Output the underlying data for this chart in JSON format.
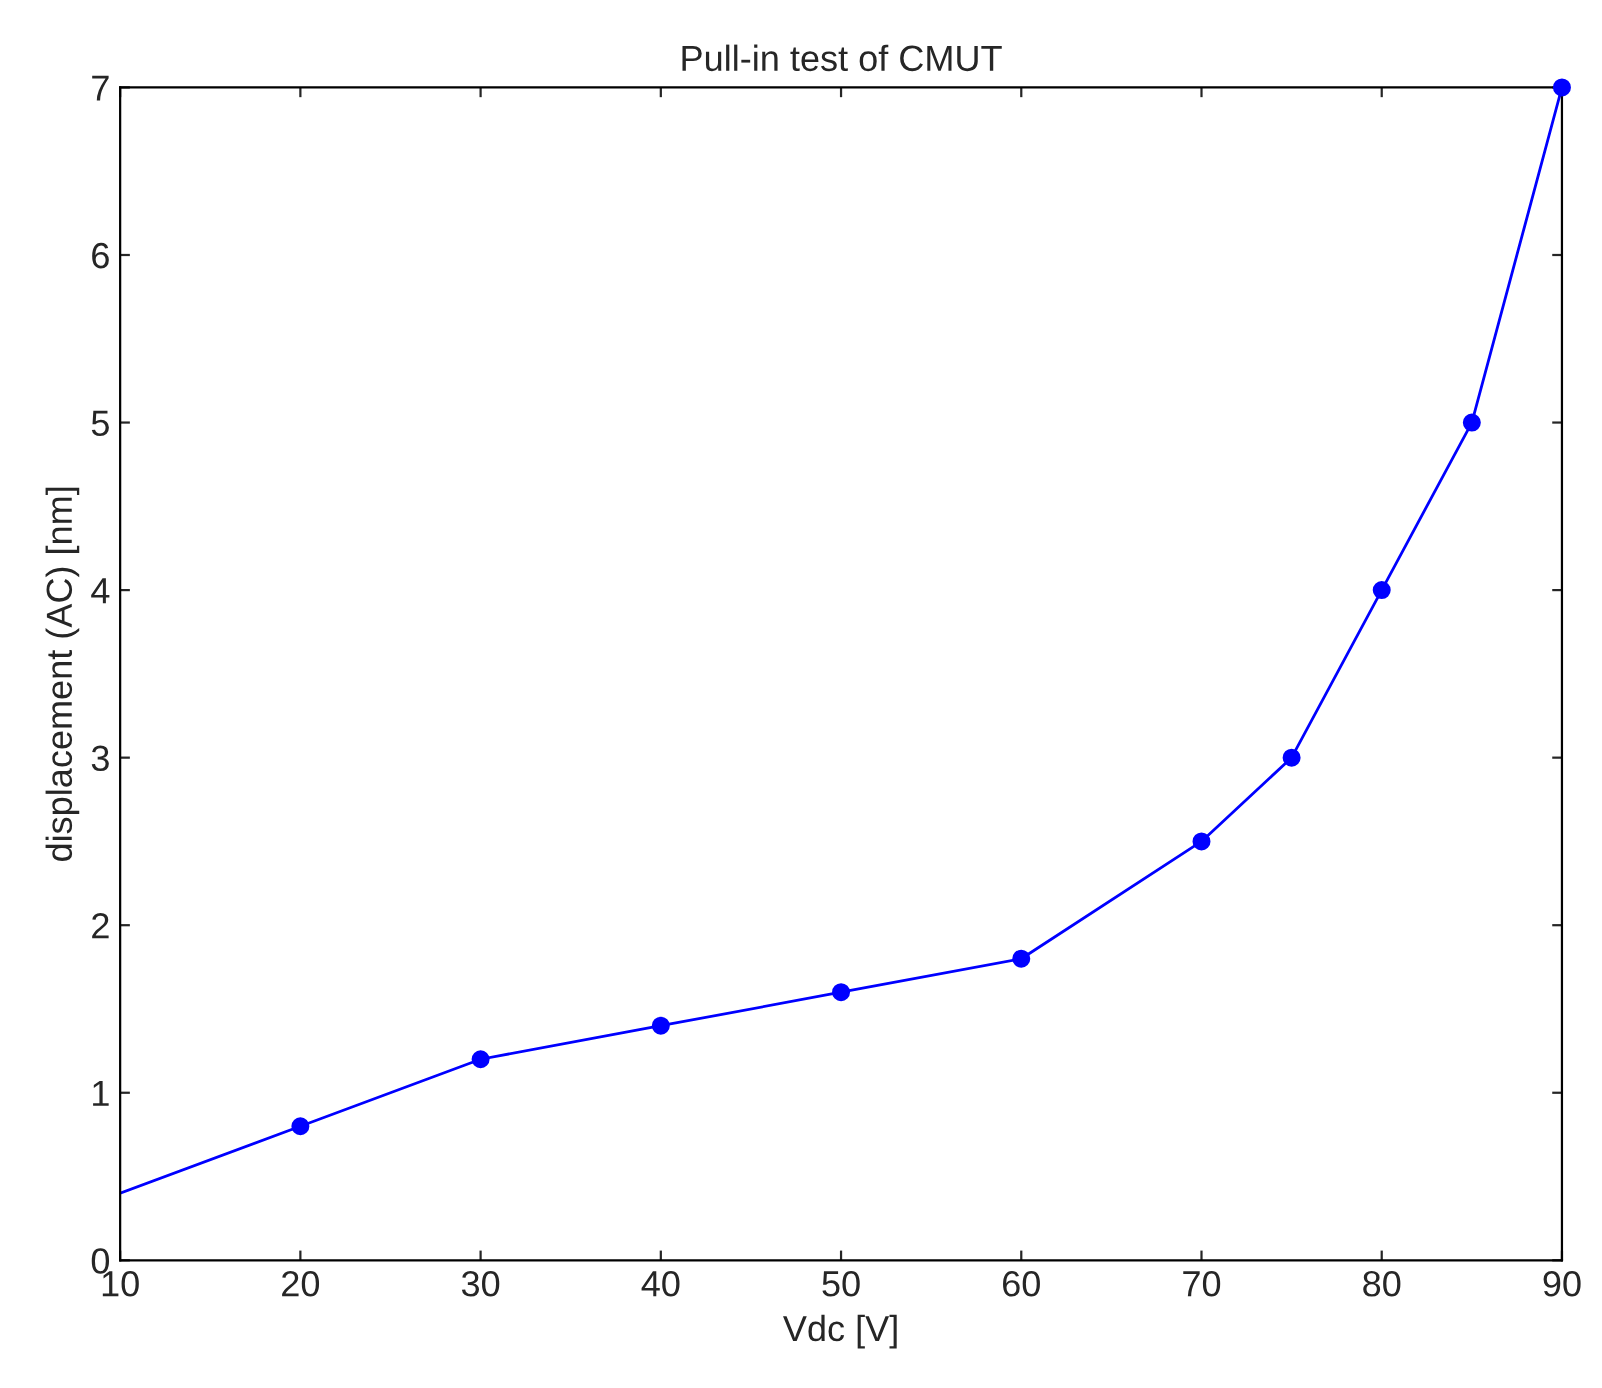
{
  "chart_data": {
    "type": "line",
    "title": "Pull-in test of CMUT",
    "xlabel": "Vdc [V]",
    "ylabel": "displacement (AC) [nm]",
    "series": [
      {
        "color": "#0000ff",
        "marker": "none",
        "x": [
          10,
          20,
          30,
          40,
          50,
          60,
          70,
          75,
          80,
          85,
          90
        ],
        "values": [
          0.4,
          0.8,
          1.2,
          1.4,
          1.6,
          1.8,
          2.5,
          3.0,
          4.0,
          5.0,
          7.0
        ]
      },
      {
        "type": "scatter",
        "color": "#0000ff",
        "marker": "circle",
        "x": [
          20,
          30,
          40,
          50,
          60,
          70,
          75,
          80,
          85,
          90
        ],
        "values": [
          0.8,
          1.2,
          1.4,
          1.6,
          1.8,
          2.5,
          3.0,
          4.0,
          5.0,
          7.0
        ]
      }
    ],
    "xlim": [
      10,
      90
    ],
    "xticks": [
      10,
      20,
      30,
      40,
      50,
      60,
      70,
      80,
      90
    ],
    "ylim": [
      0,
      7
    ],
    "yticks": [
      0,
      1,
      2,
      3,
      4,
      5,
      6,
      7
    ],
    "grid": false,
    "legend": false
  }
}
